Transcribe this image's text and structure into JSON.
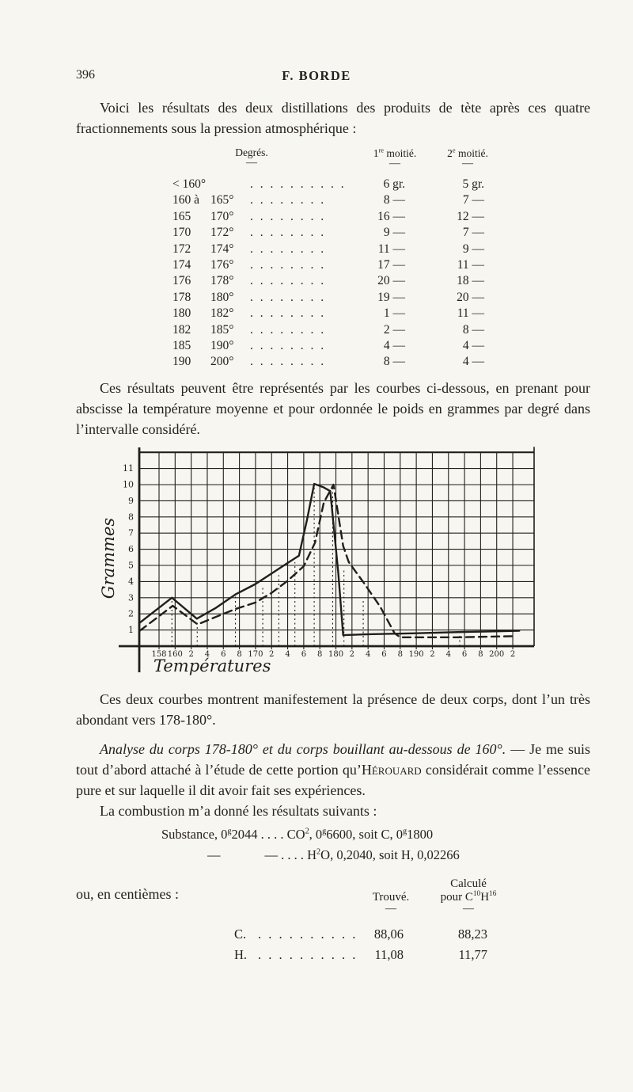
{
  "page": {
    "number": "396",
    "running_title": "F. BORDE"
  },
  "intro": {
    "text": "Voici les résultats des deux distillations des produits de tète après ces quatre fractionnements sous la pression atmosphérique :"
  },
  "table1": {
    "col_deg": "Degrés.",
    "col1_num": "1",
    "col1_sup": "re",
    "col1_rest": " moitié.",
    "col2_num": "2",
    "col2_sup": "e",
    "col2_rest": " moitié.",
    "dash": "—",
    "rows": [
      {
        "d1": "< 160°",
        "d2": "",
        "leader": ". . . . . . . . . .",
        "v1": "6 gr.",
        "v2": "5 gr."
      },
      {
        "d1": "160 à",
        "d2": "165°",
        "leader": ". . . . . . . .",
        "v1": "8 —",
        "v2": "7 —"
      },
      {
        "d1": "165",
        "d2": "170°",
        "leader": ". . . . . . . .",
        "v1": "16 —",
        "v2": "12 —"
      },
      {
        "d1": "170",
        "d2": "172°",
        "leader": ". . . . . . . .",
        "v1": "9 —",
        "v2": "7 —"
      },
      {
        "d1": "172",
        "d2": "174°",
        "leader": ". . . . . . . .",
        "v1": "11 —",
        "v2": "9 —"
      },
      {
        "d1": "174",
        "d2": "176°",
        "leader": ". . . . . . . .",
        "v1": "17 —",
        "v2": "11 —"
      },
      {
        "d1": "176",
        "d2": "178°",
        "leader": ". . . . . . . .",
        "v1": "20 —",
        "v2": "18 —"
      },
      {
        "d1": "178",
        "d2": "180°",
        "leader": ". . . . . . . .",
        "v1": "19 —",
        "v2": "20 —"
      },
      {
        "d1": "180",
        "d2": "182°",
        "leader": ". . . . . . . .",
        "v1": "1 —",
        "v2": "11 —"
      },
      {
        "d1": "182",
        "d2": "185°",
        "leader": ". . . . . . . .",
        "v1": "2 —",
        "v2": "8 —"
      },
      {
        "d1": "185",
        "d2": "190°",
        "leader": ". . . . . . . .",
        "v1": "4 —",
        "v2": "4 —"
      },
      {
        "d1": "190",
        "d2": "200°",
        "leader": ". . . . . . . .",
        "v1": "8 —",
        "v2": "4 —"
      }
    ]
  },
  "para_chart_intro": "Ces résultats peuvent être représentés par les courbes ci-dessous, en prenant pour abscisse la température moyenne et pour ordonnée le poids en grammes par degré dans l’intervalle considéré.",
  "chart_data": {
    "type": "line",
    "title": "",
    "xlabel": "Températures",
    "ylabel": "Grammes",
    "x_unit": "degrés",
    "y_unit": "grammes par degré",
    "xlim": [
      155.5,
      204.5
    ],
    "ylim": [
      0,
      12
    ],
    "grid": true,
    "legend": "none",
    "x_ticks": {
      "temps": [
        158,
        160,
        162,
        164,
        166,
        168,
        170,
        172,
        174,
        176,
        178,
        180,
        182,
        184,
        186,
        188,
        190,
        192,
        194,
        196,
        198,
        200,
        202
      ],
      "labels": [
        "158",
        "160",
        "2",
        "4",
        "6",
        "8",
        "170",
        "2",
        "4",
        "6",
        "8",
        "180",
        "2",
        "4",
        "6",
        "8",
        "190",
        "2",
        "4",
        "6",
        "8",
        "200",
        "2"
      ]
    },
    "y_ticks": [
      1,
      2,
      3,
      4,
      5,
      6,
      7,
      8,
      9,
      10,
      11
    ],
    "series": [
      {
        "name": "1re moitié",
        "style": "solid",
        "points": [
          [
            155.6,
            1.45
          ],
          [
            159.6,
            3.0
          ],
          [
            162.7,
            1.7
          ],
          [
            165.0,
            2.35
          ],
          [
            167.5,
            3.2
          ],
          [
            170.0,
            3.85
          ],
          [
            172.0,
            4.5
          ],
          [
            174.0,
            5.15
          ],
          [
            175.4,
            5.6
          ],
          [
            176.4,
            7.8
          ],
          [
            177.3,
            10.05
          ],
          [
            178.4,
            9.85
          ],
          [
            179.3,
            9.6
          ],
          [
            180.3,
            4.5
          ],
          [
            180.9,
            0.68
          ],
          [
            184.0,
            0.74
          ],
          [
            190.0,
            0.8
          ],
          [
            196.0,
            0.88
          ],
          [
            202.8,
            0.95
          ]
        ]
      },
      {
        "name": "2e moitié",
        "style": "dashed",
        "points": [
          [
            155.6,
            0.95
          ],
          [
            159.7,
            2.5
          ],
          [
            162.8,
            1.35
          ],
          [
            165.0,
            1.8
          ],
          [
            167.5,
            2.3
          ],
          [
            170.0,
            2.7
          ],
          [
            172.0,
            3.3
          ],
          [
            174.0,
            4.05
          ],
          [
            176.0,
            4.95
          ],
          [
            177.4,
            6.4
          ],
          [
            178.5,
            8.9
          ],
          [
            179.7,
            10.0
          ],
          [
            180.9,
            6.2
          ],
          [
            181.6,
            5.2
          ],
          [
            183.5,
            3.9
          ],
          [
            185.5,
            2.45
          ],
          [
            187.3,
            0.8
          ],
          [
            188.0,
            0.55
          ],
          [
            195.0,
            0.55
          ],
          [
            202.0,
            0.62
          ]
        ]
      }
    ],
    "reference_lines": [
      {
        "x": 159.6,
        "y": 2.95
      },
      {
        "x": 162.75,
        "y": 1.6
      },
      {
        "x": 167.5,
        "y": 3.15
      },
      {
        "x": 170.9,
        "y": 3.6
      },
      {
        "x": 172.9,
        "y": 4.4
      },
      {
        "x": 174.9,
        "y": 5.2
      },
      {
        "x": 177.3,
        "y": 9.95
      },
      {
        "x": 179.6,
        "y": 9.9
      },
      {
        "x": 181.0,
        "y": 4.8
      },
      {
        "x": 183.4,
        "y": 2.8
      },
      {
        "x": 195.4,
        "y": 1.0
      }
    ],
    "ink_color": "#221f1b"
  },
  "para_curves": "Ces deux courbes montrent manifestement la présence de deux corps, dont l’un très abondant vers 178-180°.",
  "analysis": {
    "italic": "Analyse du corps 178-180° et du corps bouillant au-dessous de 160°.",
    "mid": " — Je me suis tout d’abord attaché à l’étude de cette portion qu’",
    "smallcaps": "Hérouard",
    "rest": " considérait comme l’essence pure et sur laquelle il dit avoir fait ses expériences."
  },
  "combustion_intro": "La combustion m’a donné les résultats suivants :",
  "combustion": {
    "l1a": "Substance, 0",
    "l1b": "g",
    "l1c": "2044 . . . .   CO",
    "l1d": "2",
    "l1e": ", 0",
    "l1f": "g",
    "l1g": "6600, soit C, 0",
    "l1h": "g",
    "l1i": "1800",
    "l2a": "—",
    "l2b": "—",
    "l2c": " . . . .   H",
    "l2d": "2",
    "l2e": "O, 0,2040, soit H, 0,02266"
  },
  "centiemes": {
    "label": "ou, en centièmes :",
    "col_trouve": "Trouvé.",
    "col_calc_l1": "Calculé",
    "col_calc_l2a": "pour C",
    "col_calc_sup1": "10",
    "col_calc_l2b": "H",
    "col_calc_sup2": "16",
    "dash": "—",
    "rows": [
      {
        "el": "C.",
        "leader": ". . . . . . . . . . . .",
        "v1": "88,06",
        "v2": "88,23"
      },
      {
        "el": "H.",
        "leader": ". . . . . . . . . . . .",
        "v1": "11,08",
        "v2": "11,77"
      }
    ]
  }
}
